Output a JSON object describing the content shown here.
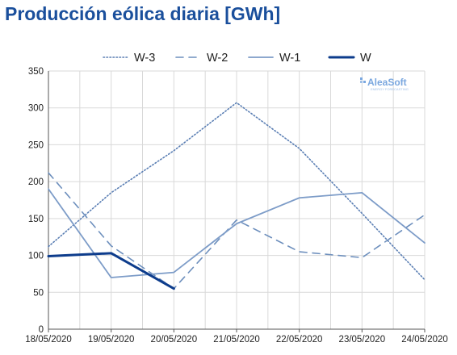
{
  "title": "Producción eólica diaria [GWh]",
  "watermark": {
    "brand": "AleaSoft",
    "tagline": "ENERGY FORECASTING"
  },
  "chart_data": {
    "type": "line",
    "title": "Producción eólica diaria [GWh]",
    "xlabel": "",
    "ylabel": "",
    "ylim": [
      0,
      350
    ],
    "yticks": [
      0,
      50,
      100,
      150,
      200,
      250,
      300,
      350
    ],
    "x": [
      "18/05/2020",
      "19/05/2020",
      "20/05/2020",
      "21/05/2020",
      "22/05/2020",
      "23/05/2020",
      "24/05/2020"
    ],
    "grid": true,
    "legend": "top",
    "series": [
      {
        "name": "W-3",
        "style": "dotted",
        "color": "#5b7fb4",
        "values": [
          112,
          185,
          242,
          307,
          245,
          157,
          67
        ]
      },
      {
        "name": "W-2",
        "style": "dashed",
        "color": "#6d8fbd",
        "values": [
          212,
          113,
          55,
          148,
          105,
          97,
          155
        ]
      },
      {
        "name": "W-1",
        "style": "solid",
        "color": "#7d9cc8",
        "values": [
          190,
          70,
          77,
          143,
          178,
          185,
          117
        ]
      },
      {
        "name": "W",
        "style": "solid-bold",
        "color": "#0d3c8c",
        "values": [
          99,
          103,
          55,
          null,
          null,
          null,
          null
        ]
      }
    ]
  }
}
